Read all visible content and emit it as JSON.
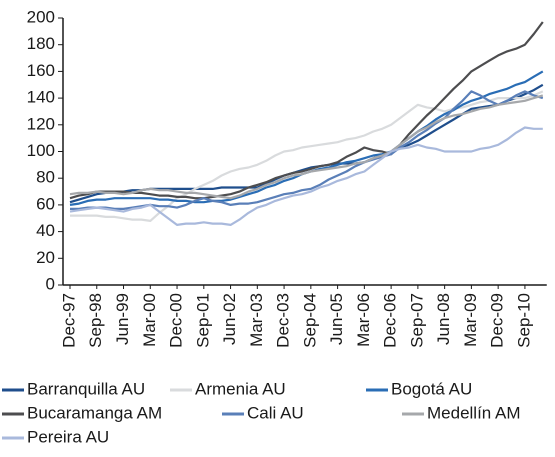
{
  "chart_data": {
    "type": "line",
    "categories": [
      "Dec-97",
      null,
      null,
      "Sep-98",
      null,
      null,
      "Jun-99",
      null,
      null,
      "Mar-00",
      null,
      null,
      "Dec-00",
      null,
      null,
      "Sep-01",
      null,
      null,
      "Jun-02",
      null,
      null,
      "Mar-03",
      null,
      null,
      "Dec-03",
      null,
      null,
      "Sep-04",
      null,
      null,
      "Jun-05",
      null,
      null,
      "Mar-06",
      null,
      null,
      "Dec-06",
      null,
      null,
      "Sep-07",
      null,
      null,
      "Jun-08",
      null,
      null,
      "Mar-09",
      null,
      null,
      "Dec-09",
      null,
      null,
      "Sep-10",
      null,
      null
    ],
    "ylim": [
      0,
      200
    ],
    "yticks": [
      0,
      20,
      40,
      60,
      80,
      100,
      120,
      140,
      160,
      180,
      200
    ],
    "series": [
      {
        "name": "Barranquilla AU",
        "color": "#1f4e8c",
        "values": [
          62,
          64,
          66,
          68,
          69,
          69,
          70,
          71,
          71,
          72,
          72,
          72,
          72,
          72,
          72,
          72,
          72,
          73,
          73,
          73,
          73,
          73,
          76,
          79,
          82,
          84,
          86,
          88,
          89,
          90,
          91,
          91,
          91,
          92,
          95,
          97,
          100,
          103,
          105,
          108,
          112,
          116,
          120,
          124,
          128,
          132,
          133,
          134,
          135,
          138,
          140,
          143,
          146,
          150
        ]
      },
      {
        "name": "Armenia AU",
        "color": "#d9dbdd",
        "values": [
          52,
          52,
          52,
          52,
          51,
          51,
          50,
          49,
          49,
          48,
          54,
          59,
          65,
          68,
          72,
          75,
          78,
          82,
          85,
          87,
          88,
          90,
          93,
          97,
          100,
          101,
          103,
          104,
          105,
          106,
          107,
          109,
          110,
          112,
          115,
          117,
          120,
          125,
          130,
          135,
          133,
          132,
          130,
          132,
          133,
          135,
          137,
          138,
          140,
          140,
          140,
          140,
          142,
          145
        ]
      },
      {
        "name": "Bogotá AU",
        "color": "#2a6db5",
        "values": [
          60,
          61,
          63,
          64,
          64,
          65,
          65,
          65,
          65,
          65,
          64,
          64,
          63,
          63,
          62,
          62,
          63,
          63,
          64,
          66,
          68,
          70,
          73,
          75,
          78,
          80,
          83,
          85,
          87,
          88,
          90,
          92,
          93,
          95,
          97,
          98,
          100,
          105,
          110,
          115,
          119,
          124,
          128,
          131,
          135,
          138,
          140,
          143,
          145,
          147,
          150,
          152,
          156,
          160
        ]
      },
      {
        "name": "Bucaramanga AM",
        "color": "#4d4d4f",
        "values": [
          65,
          67,
          68,
          70,
          70,
          70,
          70,
          69,
          69,
          68,
          67,
          67,
          66,
          66,
          65,
          65,
          66,
          67,
          68,
          70,
          73,
          75,
          77,
          80,
          82,
          84,
          85,
          87,
          89,
          90,
          92,
          96,
          99,
          103,
          101,
          100,
          98,
          105,
          113,
          120,
          127,
          133,
          140,
          147,
          153,
          160,
          164,
          168,
          172,
          175,
          177,
          180,
          188,
          197
        ]
      },
      {
        "name": "Cali AU",
        "color": "#5a7fb8",
        "values": [
          57,
          57,
          58,
          58,
          58,
          57,
          57,
          58,
          59,
          60,
          59,
          59,
          58,
          60,
          63,
          65,
          63,
          62,
          60,
          61,
          61,
          62,
          64,
          66,
          68,
          69,
          71,
          72,
          75,
          79,
          82,
          85,
          89,
          92,
          94,
          96,
          98,
          103,
          107,
          112,
          116,
          121,
          125,
          132,
          138,
          145,
          142,
          138,
          135,
          138,
          142,
          145,
          142,
          140
        ]
      },
      {
        "name": "Medellín AM",
        "color": "#a6a8ab",
        "values": [
          68,
          69,
          69,
          70,
          69,
          69,
          68,
          69,
          71,
          72,
          71,
          71,
          70,
          69,
          69,
          68,
          67,
          66,
          65,
          67,
          70,
          72,
          75,
          77,
          80,
          82,
          83,
          85,
          86,
          87,
          88,
          89,
          91,
          92,
          95,
          97,
          100,
          105,
          110,
          115,
          118,
          122,
          125,
          127,
          128,
          130,
          132,
          133,
          135,
          136,
          137,
          138,
          140,
          142
        ]
      },
      {
        "name": "Pereira AU",
        "color": "#a9b9dc",
        "values": [
          55,
          56,
          57,
          58,
          57,
          56,
          55,
          57,
          58,
          60,
          55,
          50,
          45,
          46,
          46,
          47,
          46,
          46,
          45,
          49,
          54,
          58,
          60,
          63,
          65,
          67,
          68,
          70,
          73,
          75,
          78,
          80,
          83,
          85,
          90,
          95,
          100,
          102,
          103,
          105,
          103,
          102,
          100,
          100,
          100,
          100,
          102,
          103,
          105,
          109,
          114,
          118,
          117,
          117
        ]
      }
    ]
  }
}
